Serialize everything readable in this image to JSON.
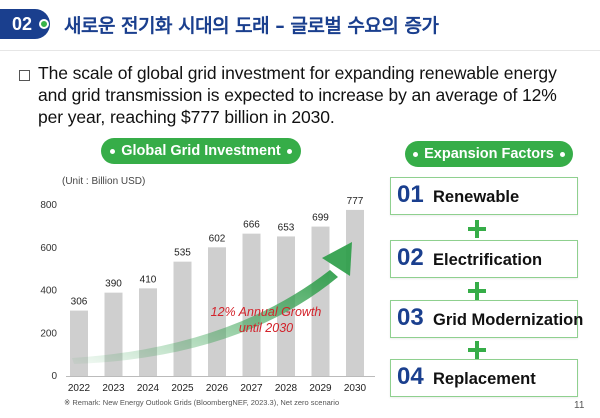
{
  "header": {
    "section_number": "02",
    "title": "새로운 전기화 시대의 도래 – 글로벌 수요의 증가"
  },
  "summary": "The scale of global grid investment for expanding renewable energy and grid transmission is expected to increase by an average of 12% per year, reaching $777 billion in 2030.",
  "chart_pill": "Global Grid Investment",
  "factors_pill": "Expansion Factors",
  "chart_data": {
    "type": "bar",
    "title": "Global Grid Investment",
    "unit_label": "(Unit : Billion USD)",
    "categories": [
      "2022",
      "2023",
      "2024",
      "2025",
      "2026",
      "2027",
      "2028",
      "2029",
      "2030"
    ],
    "values": [
      306,
      390,
      410,
      535,
      602,
      666,
      653,
      699,
      777
    ],
    "ylim": [
      0,
      800
    ],
    "yticks": [
      0,
      200,
      400,
      600,
      800
    ],
    "bar_color": "#cfcfcf",
    "annotation": [
      "12% Annual Growth",
      "until 2030"
    ],
    "annotation_color": "#d3232b",
    "arrow_color": "#2e9e4a",
    "grid": false
  },
  "factors": [
    {
      "number": "01",
      "label": "Renewable"
    },
    {
      "number": "02",
      "label": "Electrification"
    },
    {
      "number": "03",
      "label": "Grid Modernization"
    },
    {
      "number": "04",
      "label": "Replacement"
    }
  ],
  "remark": "※ Remark: New Energy Outlook Grids (BloombergNEF, 2023.3), Net zero scenario",
  "page_number": "11",
  "colors": {
    "navy": "#1a3f8e",
    "green": "#36ad48"
  }
}
